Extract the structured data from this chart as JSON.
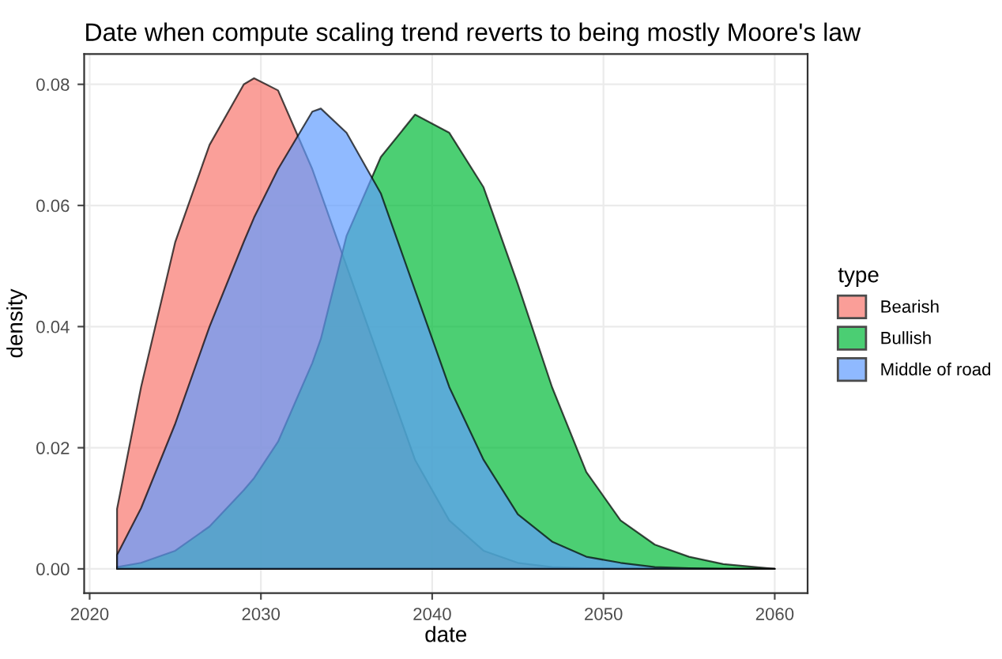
{
  "chart_data": {
    "type": "area",
    "title": "Date when compute scaling trend reverts to being mostly Moore's law",
    "xlabel": "date",
    "ylabel": "density",
    "legend_title": "type",
    "x": [
      2021.6,
      2023,
      2025,
      2027,
      2029,
      2029.6,
      2031,
      2033,
      2033.5,
      2035,
      2037,
      2039,
      2041,
      2043,
      2045,
      2047,
      2049,
      2051,
      2053,
      2055,
      2057,
      2060
    ],
    "series": [
      {
        "name": "Bearish",
        "color": "#f8766d",
        "values": [
          0.0099,
          0.03,
          0.054,
          0.07,
          0.08,
          0.081,
          0.079,
          0.066,
          0.062,
          0.05,
          0.034,
          0.018,
          0.008,
          0.003,
          0.001,
          0.0003,
          0.0001,
          0,
          0,
          0,
          0,
          0
        ]
      },
      {
        "name": "Bullish",
        "color": "#00ba38",
        "values": [
          0.0003,
          0.001,
          0.003,
          0.007,
          0.013,
          0.015,
          0.021,
          0.034,
          0.038,
          0.055,
          0.068,
          0.075,
          0.072,
          0.063,
          0.047,
          0.03,
          0.016,
          0.008,
          0.004,
          0.002,
          0.0008,
          0
        ]
      },
      {
        "name": "Middle of road",
        "color": "#619cff",
        "values": [
          0.0023,
          0.01,
          0.024,
          0.04,
          0.054,
          0.058,
          0.066,
          0.0755,
          0.076,
          0.072,
          0.062,
          0.046,
          0.03,
          0.018,
          0.009,
          0.0045,
          0.002,
          0.001,
          0.0003,
          0.0001,
          0,
          0
        ]
      }
    ],
    "xlim": [
      2019.68,
      2061.92
    ],
    "ylim": [
      -0.004,
      0.085
    ],
    "xticks": [
      2020,
      2030,
      2040,
      2050,
      2060
    ],
    "yticks": [
      {
        "value": 0,
        "label": "0.00"
      },
      {
        "value": 0.02,
        "label": "0.02"
      },
      {
        "value": 0.04,
        "label": "0.04"
      },
      {
        "value": 0.06,
        "label": "0.06"
      },
      {
        "value": 0.08,
        "label": "0.08"
      }
    ],
    "grid": true,
    "legend": "right"
  }
}
